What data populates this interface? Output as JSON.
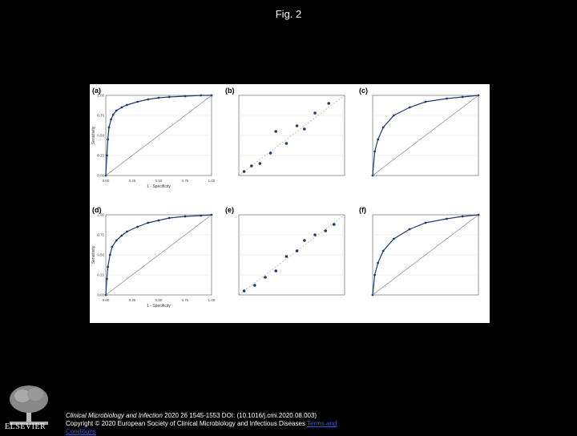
{
  "title": "Fig. 2",
  "panels": {
    "a": {
      "label": "(a)"
    },
    "b": {
      "label": "(b)"
    },
    "c": {
      "label": "(c)"
    },
    "d": {
      "label": "(d)"
    },
    "e": {
      "label": "(e)"
    },
    "f": {
      "label": "(f)"
    }
  },
  "footer": {
    "journal": "Clinical Microbiology and Infection",
    "citation": " 2020 26 1545-1553 DOI: (10.1016/j.cmi.2020.08.003)",
    "copyright": "Copyright © 2020 European Society of Clinical Microbiology and Infectious Diseases",
    "link1": "Terms and",
    "link2": "Conditions"
  },
  "logo": {
    "text": "ELSEVIER"
  },
  "chart_data": [
    {
      "panel": "a",
      "type": "line",
      "xlabel": "1 - Specificity",
      "ylabel": "Sensitivity",
      "xlim": [
        0,
        1
      ],
      "ylim": [
        0,
        1
      ],
      "x_ticks": [
        "0.00",
        "0.25",
        "0.50",
        "0.75",
        "1.00"
      ],
      "y_ticks": [
        "0.00",
        "0.25",
        "0.50",
        "0.75",
        "1.00"
      ],
      "series": [
        {
          "x": [
            0,
            0.01,
            0.02,
            0.03,
            0.05,
            0.07,
            0.1,
            0.15,
            0.2,
            0.3,
            0.4,
            0.5,
            0.6,
            0.75,
            0.9,
            1.0
          ],
          "y": [
            0,
            0.25,
            0.45,
            0.6,
            0.7,
            0.76,
            0.81,
            0.85,
            0.88,
            0.92,
            0.95,
            0.97,
            0.98,
            0.99,
            1.0,
            1.0
          ]
        },
        {
          "x": [
            0,
            1
          ],
          "y": [
            0,
            1
          ]
        }
      ]
    },
    {
      "panel": "b",
      "type": "scatter",
      "points": [
        {
          "x": 0.05,
          "y": 0.05
        },
        {
          "x": 0.12,
          "y": 0.12
        },
        {
          "x": 0.2,
          "y": 0.15
        },
        {
          "x": 0.3,
          "y": 0.28
        },
        {
          "x": 0.35,
          "y": 0.55
        },
        {
          "x": 0.45,
          "y": 0.4
        },
        {
          "x": 0.55,
          "y": 0.62
        },
        {
          "x": 0.62,
          "y": 0.58
        },
        {
          "x": 0.72,
          "y": 0.78
        },
        {
          "x": 0.85,
          "y": 0.9
        }
      ]
    },
    {
      "panel": "c",
      "type": "line",
      "xlim": [
        0,
        1
      ],
      "ylim": [
        0,
        1
      ],
      "series": [
        {
          "x": [
            0,
            0.02,
            0.05,
            0.1,
            0.2,
            0.35,
            0.5,
            0.7,
            0.85,
            1.0
          ],
          "y": [
            0,
            0.3,
            0.45,
            0.6,
            0.75,
            0.85,
            0.92,
            0.96,
            0.98,
            1.0
          ]
        },
        {
          "x": [
            0,
            1
          ],
          "y": [
            0,
            1
          ]
        }
      ]
    },
    {
      "panel": "d",
      "type": "line",
      "xlabel": "1 - Specificity",
      "ylabel": "Sensitivity",
      "xlim": [
        0,
        1
      ],
      "ylim": [
        0,
        1
      ],
      "x_ticks": [
        "0.00",
        "0.25",
        "0.50",
        "0.75",
        "1.00"
      ],
      "y_ticks": [
        "0.00",
        "0.25",
        "0.50",
        "0.75",
        "1.00"
      ],
      "series": [
        {
          "x": [
            0,
            0.01,
            0.02,
            0.04,
            0.06,
            0.1,
            0.15,
            0.2,
            0.3,
            0.4,
            0.5,
            0.6,
            0.75,
            0.9,
            1.0
          ],
          "y": [
            0,
            0.2,
            0.35,
            0.5,
            0.6,
            0.68,
            0.74,
            0.79,
            0.85,
            0.9,
            0.93,
            0.96,
            0.98,
            0.99,
            1.0
          ]
        },
        {
          "x": [
            0,
            1
          ],
          "y": [
            0,
            1
          ]
        }
      ]
    },
    {
      "panel": "e",
      "type": "scatter",
      "points": [
        {
          "x": 0.05,
          "y": 0.05
        },
        {
          "x": 0.15,
          "y": 0.12
        },
        {
          "x": 0.25,
          "y": 0.22
        },
        {
          "x": 0.35,
          "y": 0.3
        },
        {
          "x": 0.45,
          "y": 0.48
        },
        {
          "x": 0.55,
          "y": 0.55
        },
        {
          "x": 0.62,
          "y": 0.68
        },
        {
          "x": 0.72,
          "y": 0.75
        },
        {
          "x": 0.82,
          "y": 0.8
        },
        {
          "x": 0.9,
          "y": 0.88
        }
      ]
    },
    {
      "panel": "f",
      "type": "line",
      "xlim": [
        0,
        1
      ],
      "ylim": [
        0,
        1
      ],
      "series": [
        {
          "x": [
            0,
            0.02,
            0.05,
            0.1,
            0.2,
            0.35,
            0.5,
            0.7,
            0.85,
            1.0
          ],
          "y": [
            0,
            0.25,
            0.4,
            0.55,
            0.7,
            0.82,
            0.9,
            0.95,
            0.98,
            1.0
          ]
        },
        {
          "x": [
            0,
            1
          ],
          "y": [
            0,
            1
          ]
        }
      ]
    }
  ]
}
